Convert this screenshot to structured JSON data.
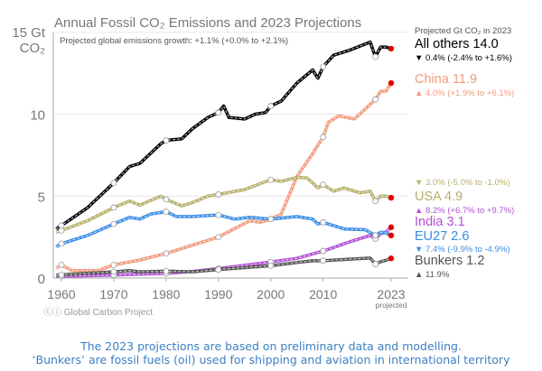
{
  "chart_data": {
    "type": "line",
    "title": "Annual Fossil CO₂ Emissions and 2023 Projections",
    "subtitle": "Projected global emissions growth: +1.1% (+0.0% to +2.1%)",
    "ylabel_line1": "15 Gt",
    "ylabel_line2": "CO₂",
    "xlim": [
      1959,
      2023
    ],
    "ylim": [
      0,
      15
    ],
    "yticks": [
      "0",
      "5",
      "10"
    ],
    "xticks": [
      "1960",
      "1970",
      "1980",
      "1990",
      "2000",
      "2010",
      "2023"
    ],
    "xtick_note": "projected",
    "grid": "horizontal",
    "legend_title": "Projected Gt CO₂ in 2023",
    "source": "Global Carbon Project",
    "series": [
      {
        "name": "All others",
        "projected": "14.0",
        "change": "0.4% (-2.4% to +1.6%)",
        "direction": "down",
        "color": "#000000",
        "x": [
          1959,
          1960,
          1965,
          1970,
          1973,
          1975,
          1979,
          1980,
          1983,
          1985,
          1988,
          1990,
          1991,
          1992,
          1995,
          1997,
          1999,
          2000,
          2002,
          2005,
          2008,
          2009,
          2010,
          2012,
          2015,
          2019,
          2020,
          2021,
          2022,
          2023
        ],
        "y": [
          3.0,
          3.2,
          4.3,
          5.8,
          6.8,
          7.0,
          8.2,
          8.4,
          8.5,
          9.1,
          9.8,
          10.1,
          10.5,
          9.8,
          9.7,
          10.0,
          10.1,
          10.5,
          10.8,
          11.9,
          12.7,
          12.2,
          12.9,
          13.6,
          13.9,
          14.4,
          13.5,
          14.1,
          14.1,
          14.0
        ]
      },
      {
        "name": "China",
        "projected": "11.9",
        "change": "4.0% (+1.9% to +6.1%)",
        "direction": "up",
        "color": "#f29a7c",
        "x": [
          1959,
          1960,
          1962,
          1967,
          1970,
          1975,
          1980,
          1985,
          1990,
          1996,
          1998,
          2000,
          2002,
          2005,
          2008,
          2010,
          2011,
          2013,
          2016,
          2019,
          2020,
          2021,
          2022,
          2023
        ],
        "y": [
          0.6,
          0.8,
          0.45,
          0.45,
          0.8,
          1.1,
          1.5,
          2.0,
          2.5,
          3.5,
          3.4,
          3.6,
          3.9,
          6.2,
          7.6,
          8.6,
          9.5,
          9.9,
          9.7,
          10.6,
          10.9,
          11.4,
          11.4,
          11.9
        ]
      },
      {
        "name": "USA",
        "projected": "4.9",
        "change": "3.0% (-5.0% to -1.0%)",
        "direction": "down",
        "color": "#b6b06c",
        "x": [
          1959,
          1960,
          1965,
          1970,
          1973,
          1975,
          1979,
          1980,
          1983,
          1985,
          1988,
          1990,
          1995,
          2000,
          2002,
          2005,
          2007,
          2009,
          2010,
          2012,
          2014,
          2017,
          2019,
          2020,
          2021,
          2022,
          2023
        ],
        "y": [
          2.8,
          2.9,
          3.5,
          4.3,
          4.7,
          4.45,
          5.0,
          4.8,
          4.4,
          4.6,
          5.0,
          5.1,
          5.4,
          6.0,
          5.9,
          6.15,
          6.1,
          5.5,
          5.7,
          5.3,
          5.5,
          5.2,
          5.3,
          4.7,
          5.0,
          5.0,
          4.9
        ]
      },
      {
        "name": "India",
        "projected": "3.1",
        "change": "8.2% (+6.7% to +9.7%)",
        "direction": "up",
        "color": "#b24fd4",
        "x": [
          1959,
          1970,
          1980,
          1985,
          1990,
          2000,
          2005,
          2010,
          2015,
          2019,
          2020,
          2021,
          2022,
          2023
        ],
        "y": [
          0.1,
          0.18,
          0.28,
          0.4,
          0.58,
          0.98,
          1.2,
          1.65,
          2.2,
          2.6,
          2.4,
          2.7,
          2.8,
          3.1
        ]
      },
      {
        "name": "EU27",
        "projected": "2.6",
        "change": "7.4% (-9.9% to -4.9%)",
        "direction": "down",
        "color": "#3a8de6",
        "x": [
          1959,
          1960,
          1965,
          1970,
          1973,
          1975,
          1977,
          1980,
          1982,
          1985,
          1990,
          1993,
          1996,
          2000,
          2005,
          2008,
          2009,
          2010,
          2014,
          2018,
          2020,
          2021,
          2022,
          2023
        ],
        "y": [
          1.9,
          2.1,
          2.6,
          3.3,
          3.7,
          3.6,
          3.9,
          4.05,
          3.75,
          3.75,
          3.85,
          3.6,
          3.7,
          3.6,
          3.75,
          3.6,
          3.3,
          3.4,
          3.0,
          2.95,
          2.6,
          2.8,
          2.75,
          2.6
        ]
      },
      {
        "name": "Bunkers",
        "projected": "1.2",
        "change": "11.9%",
        "direction": "up",
        "color": "#555555",
        "x": [
          1959,
          1970,
          1973,
          1975,
          1980,
          1985,
          1990,
          2000,
          2005,
          2008,
          2010,
          2015,
          2019,
          2020,
          2021,
          2022,
          2023
        ],
        "y": [
          0.18,
          0.38,
          0.45,
          0.38,
          0.42,
          0.38,
          0.52,
          0.75,
          0.95,
          1.05,
          1.05,
          1.15,
          1.22,
          0.85,
          1.0,
          1.08,
          1.2
        ]
      }
    ],
    "marker_years": [
      1960,
      1970,
      1980,
      1990,
      2000,
      2010,
      2020
    ],
    "projection_marker_color": "#e00000"
  },
  "footnote": {
    "line1": "The 2023 projections are based on preliminary data and modelling.",
    "line2": "‘Bunkers’ are fossil fuels (oil) used for shipping and aviation in international territory"
  }
}
